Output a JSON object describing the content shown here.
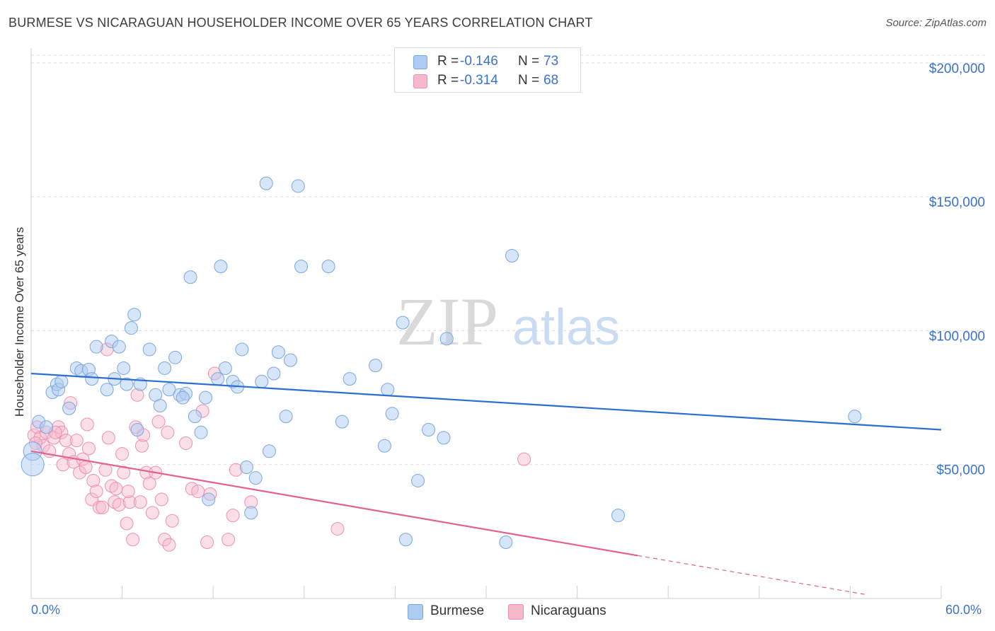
{
  "title": "BURMESE VS NICARAGUAN HOUSEHOLDER INCOME OVER 65 YEARS CORRELATION CHART",
  "source": "Source: ZipAtlas.com",
  "watermark": {
    "zip": "ZIP",
    "atlas": "atlas"
  },
  "stats": {
    "burmese": {
      "r_label": "R =",
      "r_value": "-0.146",
      "n_label": "N =",
      "n_value": "73"
    },
    "nicaraguans": {
      "r_label": "R =",
      "r_value": "-0.314",
      "n_label": "N =",
      "n_value": "68"
    }
  },
  "legend": {
    "burmese": "Burmese",
    "nicaraguans": "Nicaraguans"
  },
  "colors": {
    "burmese_fill": "#aecbf0",
    "burmese_stroke": "#7aa6de",
    "burmese_line": "#2a6fcf",
    "nicaraguans_fill": "#f6b8cb",
    "nicaraguans_stroke": "#ee8fae",
    "nicaraguans_line": "#e2628f",
    "axis_text": "#3a72c8"
  },
  "chart_data": {
    "type": "scatter",
    "title": "BURMESE VS NICARAGUAN HOUSEHOLDER INCOME OVER 65 YEARS CORRELATION CHART",
    "xlabel": "",
    "ylabel": "Householder Income Over 65 years",
    "xlim": [
      0,
      60
    ],
    "ylim": [
      0,
      205000
    ],
    "x_tick_labels": [
      "0.0%",
      "60.0%"
    ],
    "y_ticks": [
      50000,
      100000,
      150000,
      200000
    ],
    "y_tick_labels": [
      "$50,000",
      "$100,000",
      "$150,000",
      "$200,000"
    ],
    "grid": true,
    "legend_position": "bottom-center",
    "series": [
      {
        "name": "Burmese",
        "trend": {
          "x": [
            0,
            60
          ],
          "y": [
            84000,
            63000
          ]
        },
        "points": [
          [
            0.1,
            55000
          ],
          [
            0.5,
            66000
          ],
          [
            1.0,
            64000
          ],
          [
            1.4,
            77000
          ],
          [
            1.7,
            80000
          ],
          [
            1.8,
            78000
          ],
          [
            2.0,
            81000
          ],
          [
            2.5,
            71000
          ],
          [
            3.0,
            86000
          ],
          [
            3.3,
            85000
          ],
          [
            3.8,
            85500
          ],
          [
            4.0,
            82000
          ],
          [
            4.3,
            94000
          ],
          [
            5.0,
            78000
          ],
          [
            5.3,
            96000
          ],
          [
            5.5,
            82000
          ],
          [
            5.8,
            94000
          ],
          [
            6.1,
            86000
          ],
          [
            6.3,
            80000
          ],
          [
            6.6,
            101000
          ],
          [
            6.8,
            106000
          ],
          [
            7.0,
            63000
          ],
          [
            7.2,
            80000
          ],
          [
            7.8,
            93000
          ],
          [
            8.2,
            76000
          ],
          [
            8.5,
            72000
          ],
          [
            8.8,
            86000
          ],
          [
            9.1,
            78000
          ],
          [
            9.5,
            90000
          ],
          [
            9.8,
            76000
          ],
          [
            10.2,
            76500
          ],
          [
            10.5,
            120000
          ],
          [
            10.8,
            68000
          ],
          [
            11.2,
            62000
          ],
          [
            11.5,
            75000
          ],
          [
            11.7,
            37000
          ],
          [
            12.3,
            82000
          ],
          [
            12.5,
            124000
          ],
          [
            12.8,
            86000
          ],
          [
            13.3,
            81000
          ],
          [
            13.6,
            79000
          ],
          [
            13.9,
            93000
          ],
          [
            14.2,
            49000
          ],
          [
            14.5,
            32000
          ],
          [
            14.8,
            45000
          ],
          [
            15.2,
            81000
          ],
          [
            15.5,
            155000
          ],
          [
            15.7,
            55000
          ],
          [
            16.0,
            84000
          ],
          [
            16.3,
            92000
          ],
          [
            16.8,
            68000
          ],
          [
            17.1,
            89000
          ],
          [
            17.6,
            154000
          ],
          [
            17.8,
            124000
          ],
          [
            19.6,
            124000
          ],
          [
            20.5,
            66000
          ],
          [
            21.0,
            82000
          ],
          [
            22.7,
            87000
          ],
          [
            23.3,
            57000
          ],
          [
            23.5,
            78000
          ],
          [
            23.8,
            69000
          ],
          [
            24.5,
            103000
          ],
          [
            24.7,
            22000
          ],
          [
            25.5,
            44000
          ],
          [
            26.2,
            63000
          ],
          [
            27.2,
            60000
          ],
          [
            27.4,
            97000
          ],
          [
            31.3,
            21000
          ],
          [
            31.7,
            128000
          ],
          [
            38.7,
            31000
          ],
          [
            54.3,
            68000
          ],
          [
            0.1,
            50000
          ],
          [
            10.0,
            75000
          ]
        ]
      },
      {
        "name": "Nicaraguans",
        "trend": {
          "x": [
            0,
            40
          ],
          "y": [
            55000,
            16000
          ]
        },
        "trend_dashed": {
          "x": [
            40,
            55
          ],
          "y": [
            16000,
            1500
          ]
        },
        "points": [
          [
            0.2,
            61000
          ],
          [
            0.4,
            64000
          ],
          [
            0.6,
            60000
          ],
          [
            0.8,
            57000
          ],
          [
            1.0,
            62000
          ],
          [
            1.2,
            55000
          ],
          [
            1.5,
            60000
          ],
          [
            1.8,
            64000
          ],
          [
            2.0,
            62000
          ],
          [
            2.1,
            50000
          ],
          [
            2.3,
            59000
          ],
          [
            2.5,
            54000
          ],
          [
            2.6,
            73000
          ],
          [
            2.8,
            51000
          ],
          [
            3.0,
            59000
          ],
          [
            3.2,
            47000
          ],
          [
            3.4,
            52000
          ],
          [
            3.6,
            49000
          ],
          [
            3.7,
            65000
          ],
          [
            3.8,
            56000
          ],
          [
            4.0,
            37000
          ],
          [
            4.1,
            44000
          ],
          [
            4.3,
            40000
          ],
          [
            4.5,
            34000
          ],
          [
            4.7,
            34000
          ],
          [
            4.9,
            48000
          ],
          [
            5.0,
            93000
          ],
          [
            5.1,
            60000
          ],
          [
            5.3,
            42000
          ],
          [
            5.5,
            36000
          ],
          [
            5.6,
            41000
          ],
          [
            5.8,
            35000
          ],
          [
            6.0,
            54000
          ],
          [
            6.1,
            47000
          ],
          [
            6.3,
            28000
          ],
          [
            6.5,
            36000
          ],
          [
            6.7,
            22000
          ],
          [
            6.9,
            64000
          ],
          [
            7.0,
            76000
          ],
          [
            7.2,
            36000
          ],
          [
            7.3,
            57000
          ],
          [
            7.4,
            61000
          ],
          [
            7.6,
            47000
          ],
          [
            7.8,
            43000
          ],
          [
            8.0,
            32000
          ],
          [
            8.2,
            47000
          ],
          [
            8.4,
            66000
          ],
          [
            8.6,
            37000
          ],
          [
            8.8,
            22000
          ],
          [
            9.1,
            20000
          ],
          [
            9.3,
            29000
          ],
          [
            10.2,
            58000
          ],
          [
            10.6,
            41000
          ],
          [
            11.3,
            70000
          ],
          [
            11.6,
            21000
          ],
          [
            11.8,
            39000
          ],
          [
            12.1,
            84000
          ],
          [
            13.0,
            22000
          ],
          [
            13.3,
            31000
          ],
          [
            13.5,
            48000
          ],
          [
            14.5,
            36000
          ],
          [
            20.2,
            26000
          ],
          [
            32.5,
            52000
          ],
          [
            0.3,
            58000
          ],
          [
            1.6,
            62000
          ],
          [
            9.0,
            62000
          ],
          [
            6.4,
            40000
          ],
          [
            11.0,
            40000
          ]
        ]
      }
    ]
  }
}
